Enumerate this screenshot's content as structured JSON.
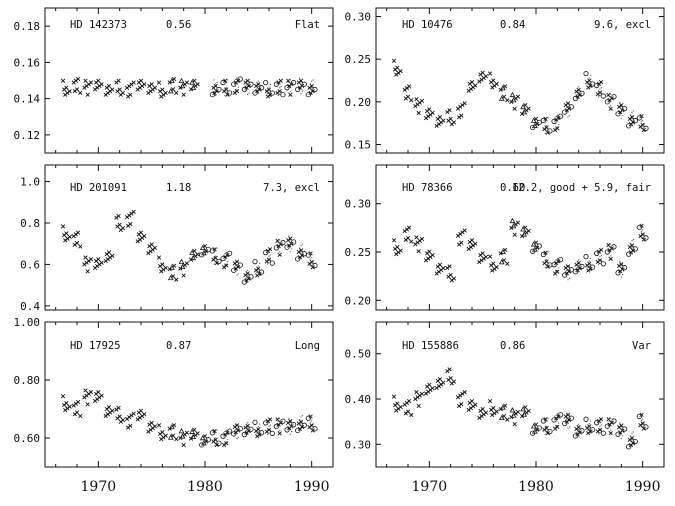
{
  "chart_data": [
    {
      "type": "scatter",
      "star": "HD 142373",
      "rhk": "0.56",
      "class": "Flat",
      "xlim": [
        1965,
        1992
      ],
      "ylim": [
        0.11,
        0.19
      ],
      "yticks": [
        "0.12",
        "0.14",
        "0.16",
        "0.18"
      ],
      "ytick_values": [
        0.12,
        0.14,
        0.16,
        0.18
      ],
      "xticks": [
        "1970",
        "1980",
        "1990"
      ],
      "xtick_values": [
        1970,
        1980,
        1990
      ],
      "show_xlabels": false,
      "x": [
        1967.0,
        1968.0,
        1969.0,
        1970.0,
        1971.0,
        1972.0,
        1973.0,
        1974.0,
        1975.0,
        1976.0,
        1977.0,
        1978.0,
        1979.0,
        1981.0,
        1982.0,
        1983.0,
        1984.0,
        1985.0,
        1986.0,
        1987.0,
        1988.0,
        1989.0,
        1990.0
      ],
      "y": [
        0.146,
        0.147,
        0.146,
        0.147,
        0.146,
        0.146,
        0.145,
        0.146,
        0.146,
        0.145,
        0.147,
        0.146,
        0.147,
        0.146,
        0.146,
        0.147,
        0.146,
        0.146,
        0.145,
        0.146,
        0.146,
        0.147,
        0.146
      ]
    },
    {
      "type": "scatter",
      "star": "HD 10476",
      "rhk": "0.84",
      "class": "9.6, excl",
      "xlim": [
        1965,
        1992
      ],
      "ylim": [
        0.14,
        0.31
      ],
      "yticks": [
        "0.15",
        "0.20",
        "0.25",
        "0.30"
      ],
      "ytick_values": [
        0.15,
        0.2,
        0.25,
        0.3
      ],
      "xticks": [
        "1970",
        "1980",
        "1990"
      ],
      "xtick_values": [
        1970,
        1980,
        1990
      ],
      "show_xlabels": false,
      "x": [
        1967.0,
        1968.0,
        1969.0,
        1970.0,
        1971.0,
        1972.0,
        1973.0,
        1974.0,
        1975.0,
        1976.0,
        1977.0,
        1978.0,
        1979.0,
        1980.0,
        1981.0,
        1982.0,
        1983.0,
        1984.0,
        1985.0,
        1986.0,
        1987.0,
        1988.0,
        1989.0,
        1990.0
      ],
      "y": [
        0.24,
        0.21,
        0.195,
        0.185,
        0.18,
        0.182,
        0.19,
        0.215,
        0.23,
        0.225,
        0.21,
        0.2,
        0.19,
        0.178,
        0.172,
        0.175,
        0.19,
        0.21,
        0.225,
        0.215,
        0.2,
        0.19,
        0.18,
        0.175
      ]
    },
    {
      "type": "scatter",
      "star": "HD 201091",
      "rhk": "1.18",
      "class": "7.3, excl",
      "xlim": [
        1965,
        1992
      ],
      "ylim": [
        0.38,
        1.08
      ],
      "yticks": [
        "0.4",
        "0.6",
        "0.8",
        "1.0"
      ],
      "ytick_values": [
        0.4,
        0.6,
        0.8,
        1.0
      ],
      "xticks": [
        "1970",
        "1980",
        "1990"
      ],
      "xtick_values": [
        1970,
        1980,
        1990
      ],
      "show_xlabels": false,
      "x": [
        1967.0,
        1968.0,
        1969.0,
        1970.0,
        1971.0,
        1972.0,
        1973.0,
        1974.0,
        1975.0,
        1976.0,
        1977.0,
        1978.0,
        1979.0,
        1980.0,
        1981.0,
        1982.0,
        1983.0,
        1984.0,
        1985.0,
        1986.0,
        1987.0,
        1988.0,
        1989.0,
        1990.0
      ],
      "y": [
        0.75,
        0.72,
        0.6,
        0.6,
        0.65,
        0.8,
        0.82,
        0.72,
        0.68,
        0.6,
        0.56,
        0.58,
        0.64,
        0.68,
        0.64,
        0.62,
        0.58,
        0.54,
        0.58,
        0.64,
        0.68,
        0.7,
        0.66,
        0.62
      ]
    },
    {
      "type": "scatter",
      "star": "HD 78366",
      "rhk": "0.60",
      "class": "12.2, good + 5.9, fair",
      "xlim": [
        1965,
        1992
      ],
      "ylim": [
        0.19,
        0.34
      ],
      "yticks": [
        "0.20",
        "0.25",
        "0.30"
      ],
      "ytick_values": [
        0.2,
        0.25,
        0.3
      ],
      "xticks": [
        "1970",
        "1980",
        "1990"
      ],
      "xtick_values": [
        1970,
        1980,
        1990
      ],
      "show_xlabels": false,
      "x": [
        1967.0,
        1968.0,
        1969.0,
        1970.0,
        1971.0,
        1972.0,
        1973.0,
        1974.0,
        1975.0,
        1976.0,
        1977.0,
        1978.0,
        1979.0,
        1980.0,
        1981.0,
        1982.0,
        1983.0,
        1984.0,
        1985.0,
        1986.0,
        1987.0,
        1988.0,
        1989.0,
        1990.0
      ],
      "y": [
        0.255,
        0.268,
        0.258,
        0.245,
        0.235,
        0.228,
        0.265,
        0.255,
        0.245,
        0.238,
        0.245,
        0.275,
        0.27,
        0.258,
        0.242,
        0.235,
        0.228,
        0.235,
        0.238,
        0.245,
        0.25,
        0.232,
        0.255,
        0.27
      ]
    },
    {
      "type": "scatter",
      "star": "HD 17925",
      "rhk": "0.87",
      "class": "Long",
      "xlim": [
        1965,
        1992
      ],
      "ylim": [
        0.5,
        1.0
      ],
      "yticks": [
        "0.60",
        "0.80",
        "1.00"
      ],
      "ytick_values": [
        0.6,
        0.8,
        1.0
      ],
      "xticks": [
        "1970",
        "1980",
        "1990"
      ],
      "xtick_values": [
        1970,
        1980,
        1990
      ],
      "show_xlabels": true,
      "x": [
        1967.0,
        1968.0,
        1969.0,
        1970.0,
        1971.0,
        1972.0,
        1973.0,
        1974.0,
        1975.0,
        1976.0,
        1977.0,
        1978.0,
        1979.0,
        1980.0,
        1981.0,
        1982.0,
        1983.0,
        1984.0,
        1985.0,
        1986.0,
        1987.0,
        1988.0,
        1989.0,
        1990.0
      ],
      "y": [
        0.72,
        0.7,
        0.74,
        0.74,
        0.7,
        0.68,
        0.66,
        0.67,
        0.64,
        0.62,
        0.62,
        0.6,
        0.61,
        0.6,
        0.6,
        0.6,
        0.62,
        0.63,
        0.63,
        0.64,
        0.64,
        0.64,
        0.65,
        0.65
      ]
    },
    {
      "type": "scatter",
      "star": "HD 155886",
      "rhk": "0.86",
      "class": "Var",
      "xlim": [
        1965,
        1992
      ],
      "ylim": [
        0.25,
        0.57
      ],
      "yticks": [
        "0.30",
        "0.40",
        "0.50"
      ],
      "ytick_values": [
        0.3,
        0.4,
        0.5
      ],
      "xticks": [
        "1970",
        "1980",
        "1990"
      ],
      "xtick_values": [
        1970,
        1980,
        1990
      ],
      "show_xlabels": true,
      "x": [
        1967.0,
        1968.0,
        1969.0,
        1970.0,
        1971.0,
        1972.0,
        1973.0,
        1974.0,
        1975.0,
        1976.0,
        1977.0,
        1978.0,
        1979.0,
        1980.0,
        1981.0,
        1982.0,
        1983.0,
        1984.0,
        1985.0,
        1986.0,
        1987.0,
        1988.0,
        1989.0,
        1990.0
      ],
      "y": [
        0.39,
        0.38,
        0.4,
        0.42,
        0.44,
        0.45,
        0.4,
        0.38,
        0.37,
        0.38,
        0.37,
        0.36,
        0.37,
        0.34,
        0.34,
        0.35,
        0.35,
        0.33,
        0.34,
        0.34,
        0.34,
        0.33,
        0.31,
        0.35
      ]
    }
  ]
}
